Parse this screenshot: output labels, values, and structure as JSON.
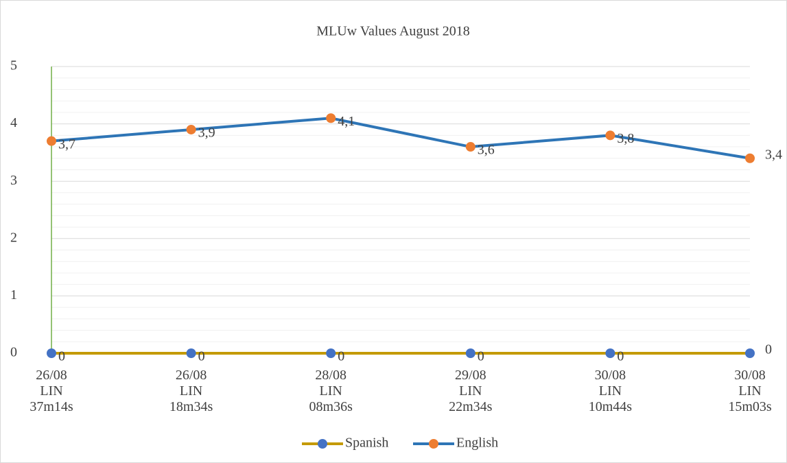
{
  "chart_data": {
    "type": "line",
    "title": "MLUw Values August 2018",
    "categories": [
      [
        "26/08",
        "LIN",
        "37m14s"
      ],
      [
        "26/08",
        "LIN",
        "18m34s"
      ],
      [
        "28/08",
        "LIN",
        "08m36s"
      ],
      [
        "29/08",
        "LIN",
        "22m34s"
      ],
      [
        "30/08",
        "LIN",
        "10m44s"
      ],
      [
        "30/08",
        "LIN",
        "15m03s"
      ]
    ],
    "series": [
      {
        "name": "Spanish",
        "color": "#c49a00",
        "marker_color": "#4472c4",
        "values": [
          0,
          0,
          0,
          0,
          0,
          0
        ]
      },
      {
        "name": "English",
        "color": "#2e75b6",
        "marker_color": "#ed7d31",
        "values": [
          3.7,
          3.9,
          4.1,
          3.6,
          3.8,
          3.4
        ],
        "value_labels": [
          "3,7",
          "3,9",
          "4,1",
          "3,6",
          "3,8",
          "3,4"
        ]
      }
    ],
    "ylim": [
      0,
      5
    ],
    "yticks": [
      0,
      1,
      2,
      3,
      4,
      5
    ],
    "yminorticks": [
      0.2,
      0.4,
      0.6,
      0.8,
      1.2,
      1.4,
      1.6,
      1.8,
      2.2,
      2.4,
      2.6,
      2.8,
      3.2,
      3.4,
      3.6,
      3.8,
      4.2,
      4.4,
      4.6,
      4.8
    ],
    "grid": true,
    "legend": "bottom"
  }
}
